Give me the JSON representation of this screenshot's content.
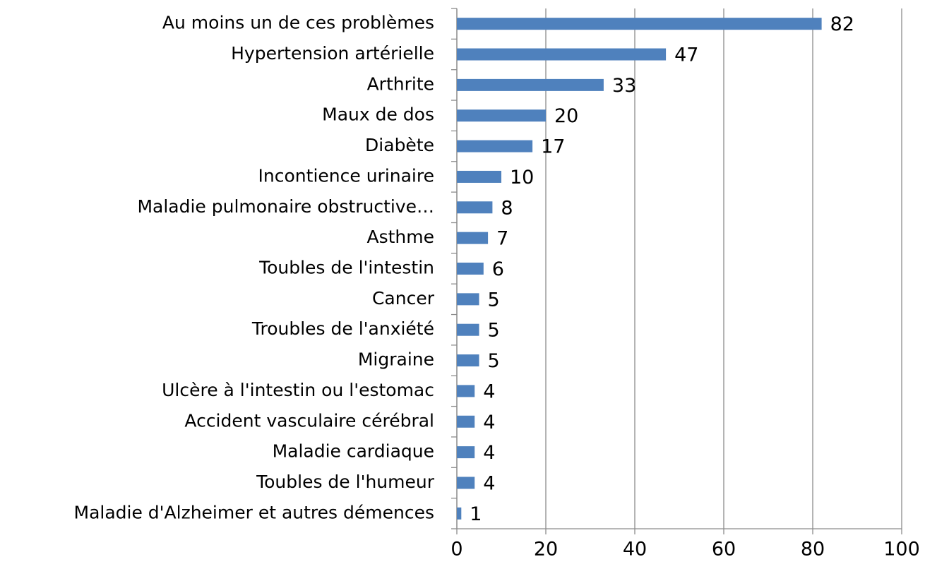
{
  "chart_data": {
    "type": "bar",
    "orientation": "horizontal",
    "categories": [
      "Au moins un de ces problèmes",
      "Hypertension artérielle",
      "Arthrite",
      "Maux de dos",
      "Diabète",
      "Incontience urinaire",
      "Maladie pulmonaire obstructive…",
      "Asthme",
      "Toubles de l'intestin",
      "Cancer",
      "Troubles de l'anxiété",
      "Migraine",
      "Ulcère à l'intestin ou l'estomac",
      "Accident vasculaire cérébral",
      "Maladie cardiaque",
      "Toubles de l'humeur",
      "Maladie d'Alzheimer et autres démences"
    ],
    "values": [
      82,
      47,
      33,
      20,
      17,
      10,
      8,
      7,
      6,
      5,
      5,
      5,
      4,
      4,
      4,
      4,
      1
    ],
    "color": "#4f81bd",
    "xlim": [
      0,
      100
    ],
    "xticks": [
      0,
      20,
      40,
      60,
      80,
      100
    ],
    "grid": true
  }
}
